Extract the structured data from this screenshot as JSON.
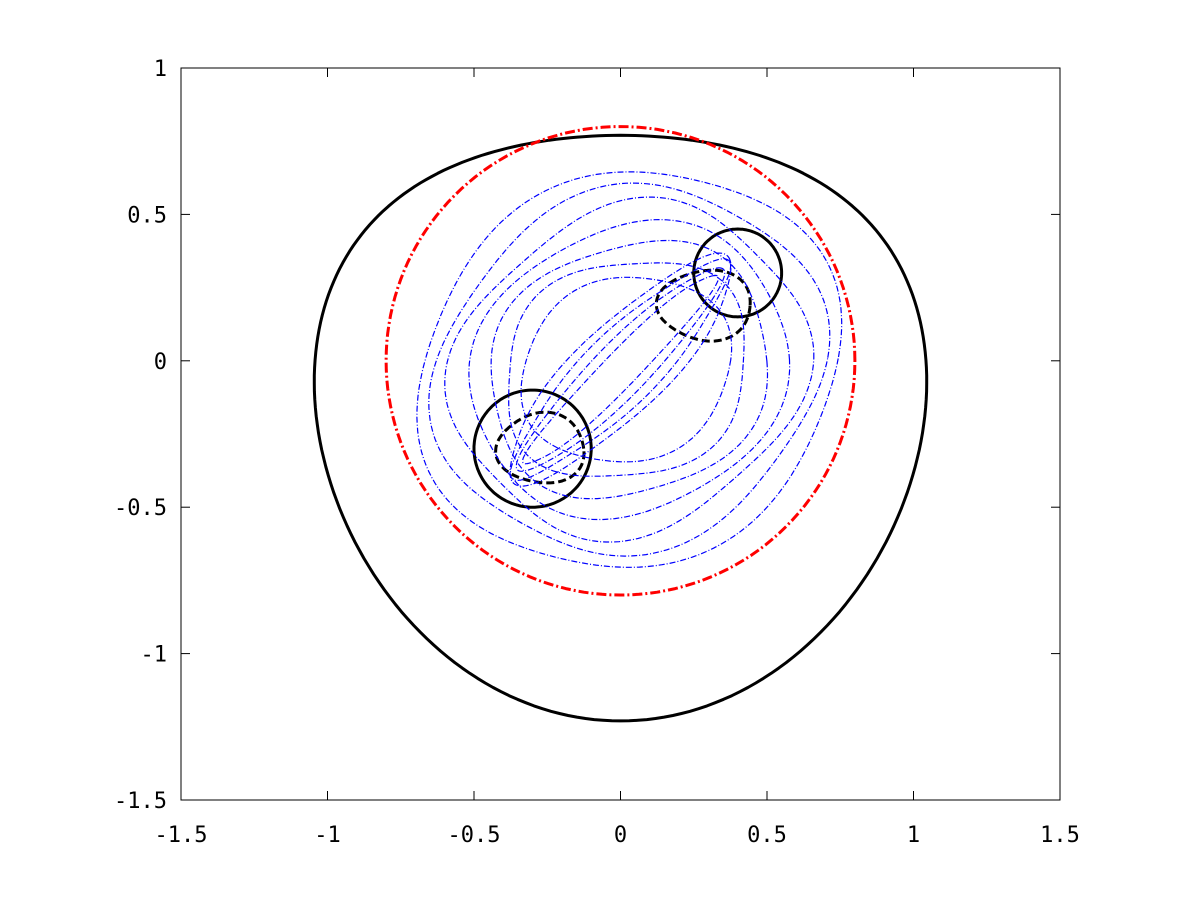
{
  "chart_data": {
    "type": "line",
    "title": "",
    "xlabel": "",
    "ylabel": "",
    "xlim": [
      -1.5,
      1.5
    ],
    "ylim": [
      -1.5,
      1.0
    ],
    "x_ticks": [
      -1.5,
      -1,
      -0.5,
      0,
      0.5,
      1,
      1.5
    ],
    "x_tick_labels": [
      "-1.5",
      "-1",
      "-0.5",
      "0",
      "0.5",
      "1",
      "1.5"
    ],
    "y_ticks": [
      -1.5,
      -1,
      -0.5,
      0,
      0.5,
      1
    ],
    "y_tick_labels": [
      "-1.5",
      "-1",
      "-0.5",
      "0",
      "0.5",
      "1"
    ],
    "grid": false,
    "legend": "none",
    "colors": {
      "outer_boundary": "#000000",
      "circle": "#ff0000",
      "level_set": "#0000ff",
      "inclusion": "#000000"
    },
    "series": [
      {
        "kind": "rounded-triangle boundary",
        "style": "solid",
        "color": "#000000",
        "top_y": 0.9,
        "bottom_y": -1.1,
        "half_width": 1.04
      },
      {
        "kind": "circle",
        "style": "dash-dot",
        "color": "#ff0000",
        "center": [
          0,
          0
        ],
        "radius": 0.8
      },
      {
        "kind": "circle",
        "style": "solid",
        "color": "#000000",
        "center": [
          -0.3,
          -0.3
        ],
        "radius": 0.2
      },
      {
        "kind": "circle",
        "style": "solid",
        "color": "#000000",
        "center": [
          0.4,
          0.3
        ],
        "radius": 0.15
      },
      {
        "kind": "closed curve",
        "style": "dashed",
        "color": "#000000",
        "center": [
          -0.27,
          -0.3
        ],
        "rx": 0.15,
        "ry": 0.12
      },
      {
        "kind": "closed curve",
        "style": "dashed",
        "color": "#000000",
        "center": [
          0.29,
          0.19
        ],
        "rx": 0.16,
        "ry": 0.12
      },
      {
        "kind": "level set",
        "style": "dash-dot",
        "color": "#0000ff",
        "center": [
          0.03,
          -0.03
        ],
        "rx": 0.72,
        "ry": 0.68
      },
      {
        "kind": "level set",
        "style": "dash-dot",
        "color": "#0000ff",
        "center": [
          0.03,
          -0.03
        ],
        "rx": 0.66,
        "ry": 0.62
      },
      {
        "kind": "level set",
        "style": "dash-dot",
        "color": "#0000ff",
        "center": [
          0.03,
          -0.03
        ],
        "rx": 0.6,
        "ry": 0.56
      },
      {
        "kind": "level set",
        "style": "dash-dot",
        "color": "#0000ff",
        "center": [
          0.03,
          -0.03
        ],
        "rx": 0.54,
        "ry": 0.5
      },
      {
        "kind": "level set",
        "style": "dash-dot",
        "color": "#0000ff",
        "center": [
          0.03,
          -0.03
        ],
        "rx": 0.48,
        "ry": 0.44
      },
      {
        "kind": "level set",
        "style": "dash-dot",
        "color": "#0000ff",
        "center": [
          0.02,
          -0.03
        ],
        "rx": 0.42,
        "ry": 0.38
      },
      {
        "kind": "level set",
        "style": "dash-dot",
        "color": "#0000ff",
        "center": [
          0.02,
          -0.03
        ],
        "rx": 0.36,
        "ry": 0.32
      },
      {
        "kind": "level set",
        "style": "dash-dot",
        "color": "#0000ff",
        "center": [
          0.0,
          -0.03
        ],
        "rx": 0.52,
        "ry": 0.15
      },
      {
        "kind": "level set",
        "style": "dash-dot",
        "color": "#0000ff",
        "center": [
          0.0,
          -0.03
        ],
        "rx": 0.5,
        "ry": 0.12
      },
      {
        "kind": "level set",
        "style": "dash-dot",
        "color": "#0000ff",
        "center": [
          0.0,
          -0.03
        ],
        "rx": 0.48,
        "ry": 0.09
      },
      {
        "kind": "level set",
        "style": "dash-dot",
        "color": "#0000ff",
        "center": [
          0.0,
          -0.03
        ],
        "rx": 0.46,
        "ry": 0.06
      }
    ]
  }
}
